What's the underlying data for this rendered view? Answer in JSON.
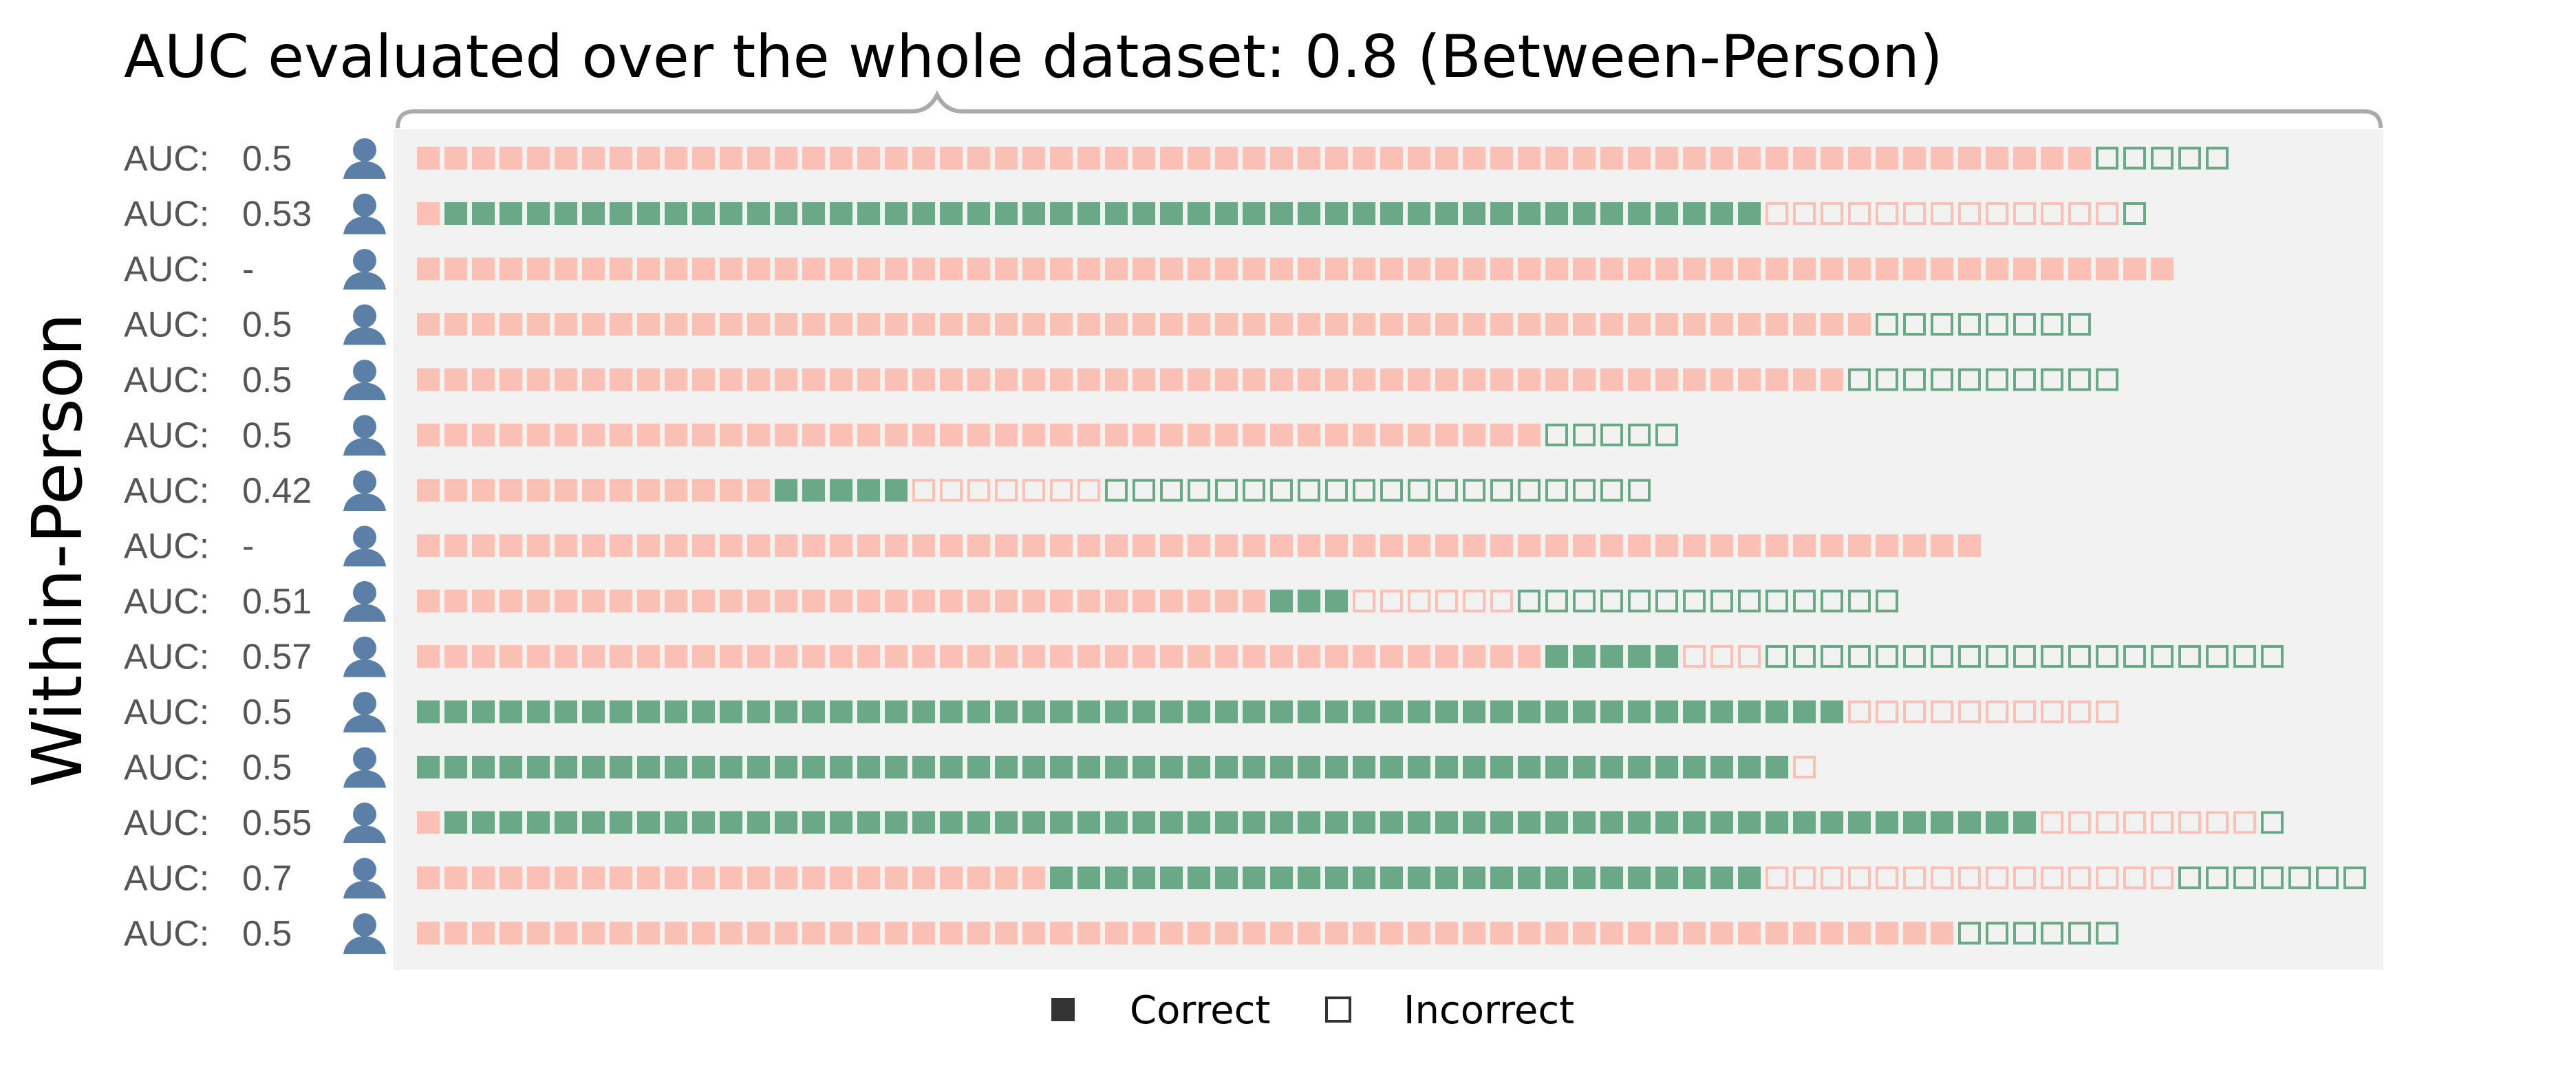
{
  "title": "AUC evaluated over the whole dataset: 0.8 (Between-Person)",
  "ylabel": "Within-Person",
  "auc_prefix": "AUC:",
  "legend": [
    {
      "label": "Correct",
      "style": "filled"
    },
    {
      "label": "Incorrect",
      "style": "outline"
    }
  ],
  "colors": {
    "positive": "#6aa888",
    "negative": "#fac0b6",
    "panel_background": "#f2f2f2",
    "brace": "#aaaaaa",
    "legend_mark": "#333333",
    "person_icon": "#5b7fa6"
  },
  "chart_data": {
    "type": "waffle",
    "title": "AUC evaluated over the whole dataset: 0.8 (Between-Person)",
    "between_person_auc": 0.8,
    "ylabel": "Within-Person",
    "segment_order": [
      "negative_correct",
      "positive_correct",
      "negative_incorrect",
      "positive_incorrect"
    ],
    "legend": [
      "Correct",
      "Incorrect"
    ],
    "rows": [
      {
        "auc": "0.5",
        "segments": [
          61,
          0,
          0,
          5
        ]
      },
      {
        "auc": "0.53",
        "segments": [
          1,
          48,
          13,
          1
        ]
      },
      {
        "auc": "-",
        "segments": [
          64,
          0,
          0,
          0
        ]
      },
      {
        "auc": "0.5",
        "segments": [
          53,
          0,
          0,
          8
        ]
      },
      {
        "auc": "0.5",
        "segments": [
          52,
          0,
          0,
          10
        ]
      },
      {
        "auc": "0.5",
        "segments": [
          41,
          0,
          0,
          5
        ]
      },
      {
        "auc": "0.42",
        "segments": [
          13,
          5,
          7,
          20
        ]
      },
      {
        "auc": "-",
        "segments": [
          57,
          0,
          0,
          0
        ]
      },
      {
        "auc": "0.51",
        "segments": [
          31,
          3,
          6,
          14
        ]
      },
      {
        "auc": "0.57",
        "segments": [
          41,
          5,
          3,
          19
        ]
      },
      {
        "auc": "0.5",
        "segments": [
          0,
          52,
          10,
          0
        ]
      },
      {
        "auc": "0.5",
        "segments": [
          0,
          50,
          1,
          0
        ]
      },
      {
        "auc": "0.55",
        "segments": [
          1,
          58,
          8,
          1
        ]
      },
      {
        "auc": "0.7",
        "segments": [
          23,
          26,
          15,
          7
        ]
      },
      {
        "auc": "0.5",
        "segments": [
          56,
          0,
          0,
          6
        ]
      }
    ]
  }
}
